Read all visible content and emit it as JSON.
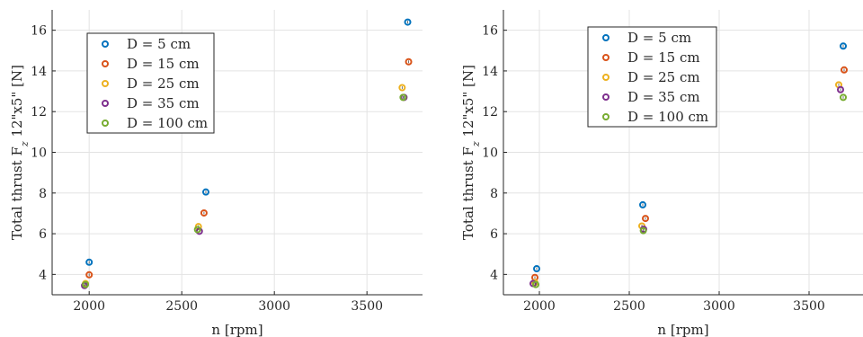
{
  "chart_data": [
    {
      "type": "scatter",
      "xlabel": "n [rpm]",
      "ylabel": "Total thrust F_z 12\"x5\" [N]",
      "ylabel_main": "Total thrust F",
      "ylabel_sub": "z",
      "ylabel_tail": " 12\"x5\" [N]",
      "xlim": [
        1800,
        3800
      ],
      "ylim": [
        3,
        17
      ],
      "xticks": [
        2000,
        2500,
        3000,
        3500
      ],
      "yticks": [
        4,
        6,
        8,
        10,
        12,
        14,
        16
      ],
      "grid": true,
      "legend_position": "top-left",
      "series": [
        {
          "name": "D = 5 cm",
          "color": "#0072BD",
          "x": [
            2000,
            2630,
            3720
          ],
          "y": [
            4.6,
            8.05,
            16.4
          ]
        },
        {
          "name": "D = 15 cm",
          "color": "#D95319",
          "x": [
            2000,
            2620,
            3725
          ],
          "y": [
            3.98,
            7.02,
            14.45
          ]
        },
        {
          "name": "D = 25 cm",
          "color": "#EDB120",
          "x": [
            1980,
            2590,
            3690
          ],
          "y": [
            3.55,
            6.35,
            13.18
          ]
        },
        {
          "name": "D = 35 cm",
          "color": "#7E2F8E",
          "x": [
            1975,
            2595,
            3700
          ],
          "y": [
            3.45,
            6.12,
            12.7
          ]
        },
        {
          "name": "D = 100 cm",
          "color": "#77AC30",
          "x": [
            1980,
            2585,
            3695
          ],
          "y": [
            3.5,
            6.2,
            12.7
          ]
        }
      ]
    },
    {
      "type": "scatter",
      "xlabel": "n [rpm]",
      "ylabel": "Total thrust F_z 12\"x5\" [N]",
      "ylabel_main": "Total thrust F",
      "ylabel_sub": "z",
      "ylabel_tail": " 12\"x5\" [N]",
      "xlim": [
        1800,
        3800
      ],
      "ylim": [
        3,
        17
      ],
      "xticks": [
        2000,
        2500,
        3000,
        3500
      ],
      "yticks": [
        4,
        6,
        8,
        10,
        12,
        14,
        16
      ],
      "grid": true,
      "legend_position": "top-center",
      "series": [
        {
          "name": "D = 5 cm",
          "color": "#0072BD",
          "x": [
            1985,
            2575,
            3690
          ],
          "y": [
            4.28,
            7.42,
            15.22
          ]
        },
        {
          "name": "D = 15 cm",
          "color": "#D95319",
          "x": [
            1975,
            2590,
            3695
          ],
          "y": [
            3.85,
            6.75,
            14.05
          ]
        },
        {
          "name": "D = 25 cm",
          "color": "#EDB120",
          "x": [
            1975,
            2570,
            3665
          ],
          "y": [
            3.6,
            6.38,
            13.32
          ]
        },
        {
          "name": "D = 35 cm",
          "color": "#7E2F8E",
          "x": [
            1965,
            2580,
            3675
          ],
          "y": [
            3.55,
            6.22,
            13.08
          ]
        },
        {
          "name": "D = 100 cm",
          "color": "#77AC30",
          "x": [
            1980,
            2578,
            3690
          ],
          "y": [
            3.5,
            6.15,
            12.7
          ]
        }
      ]
    }
  ]
}
